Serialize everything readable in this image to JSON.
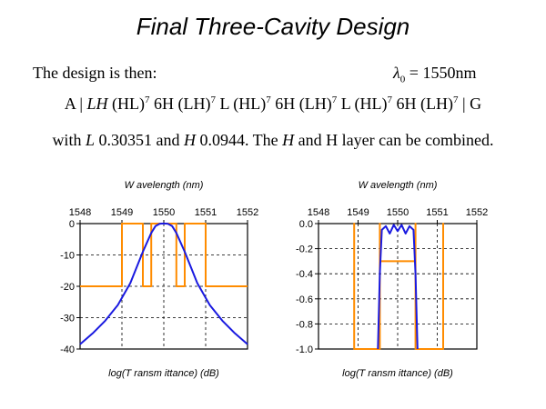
{
  "slide": {
    "title": "Final Three-Cavity Design",
    "intro": "The design is then:",
    "lambda_symbol": "λ",
    "lambda_subscript": "0",
    "lambda_value": " = 1550nm",
    "formula": [
      {
        "t": "A | "
      },
      {
        "t": "LH",
        "i": true
      },
      {
        "t": " (HL)"
      },
      {
        "t": "7",
        "sup": true
      },
      {
        "t": " 6H (LH)"
      },
      {
        "t": "7",
        "sup": true
      },
      {
        "t": " L (HL)"
      },
      {
        "t": "7",
        "sup": true
      },
      {
        "t": " 6H (LH)"
      },
      {
        "t": "7",
        "sup": true
      },
      {
        "t": " L (HL)"
      },
      {
        "t": "7",
        "sup": true
      },
      {
        "t": " 6H  (LH)"
      },
      {
        "t": "7",
        "sup": true
      },
      {
        "t": " | G"
      }
    ],
    "values_text": [
      {
        "t": "with "
      },
      {
        "t": "L",
        "i": true
      },
      {
        "t": " 0.30351 and "
      },
      {
        "t": "H",
        "i": true
      },
      {
        "t": " 0.0944. The "
      },
      {
        "t": "H",
        "i": true
      },
      {
        "t": " and H layer can be combined."
      }
    ]
  },
  "chart_data": [
    {
      "type": "line",
      "title": "W avelength (nm)",
      "xlabel": "log(T ransm ittance) (dB)",
      "ylabel": "",
      "xlim": [
        1548,
        1552
      ],
      "ylim": [
        -40,
        0
      ],
      "x_ticks": [
        1548,
        1549,
        1550,
        1551,
        1552
      ],
      "x_tick_labels": [
        "1548",
        "1549",
        "1550",
        "1551",
        "1552"
      ],
      "y_ticks": [
        0,
        -10,
        -20,
        -30,
        -40
      ],
      "y_tick_labels": [
        "0",
        "-10",
        "-20",
        "-30",
        "-40"
      ],
      "grid": true,
      "series": [
        {
          "color": "#1a1ae0",
          "x": [
            1548,
            1548.3,
            1548.6,
            1548.9,
            1549.2,
            1549.5,
            1549.7,
            1549.8,
            1549.9,
            1549.95,
            1550.0,
            1550.05,
            1550.1,
            1550.2,
            1550.3,
            1550.5,
            1550.8,
            1551.1,
            1551.4,
            1551.7,
            1552
          ],
          "y": [
            -38.5,
            -35,
            -31,
            -26,
            -19,
            -9,
            -3,
            -0.8,
            -0.1,
            0,
            0,
            0,
            -0.1,
            -0.8,
            -3,
            -9,
            -19,
            -26,
            -31,
            -35,
            -38.5
          ]
        },
        {
          "color": "#ff8c00",
          "x": [
            1548,
            1549,
            1549,
            1549.5,
            1549.5,
            1549.7,
            1549.7,
            1550.3,
            1550.3,
            1550.5,
            1550.5,
            1551,
            1551,
            1552
          ],
          "y": [
            -20,
            -20,
            0,
            0,
            -20,
            -20,
            0,
            0,
            -20,
            -20,
            0,
            0,
            -20,
            -20
          ]
        }
      ]
    },
    {
      "type": "line",
      "title": "W avelength (nm)",
      "xlabel": "log(T ransm ittance) (dB)",
      "ylabel": "",
      "xlim": [
        1548,
        1552
      ],
      "ylim": [
        -1.0,
        0.0
      ],
      "x_ticks": [
        1548,
        1549,
        1550,
        1551,
        1552
      ],
      "x_tick_labels": [
        "1548",
        "1549",
        "1550",
        "1551",
        "1552"
      ],
      "y_ticks": [
        0,
        -0.2,
        -0.4,
        -0.6,
        -0.8,
        -1.0
      ],
      "y_tick_labels": [
        "0.0",
        "-0.2",
        "-0.4",
        "-0.6",
        "-0.8",
        "-1.0"
      ],
      "grid": true,
      "series": [
        {
          "color": "#1a1ae0",
          "x": [
            1549.5,
            1549.55,
            1549.6,
            1549.7,
            1549.8,
            1549.9,
            1550.0,
            1550.1,
            1550.2,
            1550.3,
            1550.4,
            1550.45,
            1550.5
          ],
          "y": [
            -1.0,
            -0.4,
            -0.05,
            -0.02,
            -0.08,
            -0.01,
            -0.06,
            -0.01,
            -0.08,
            -0.02,
            -0.05,
            -0.4,
            -1.0
          ]
        },
        {
          "color": "#ff8c00",
          "x": [
            1548.9,
            1548.9,
            1548.9,
            1549.55,
            1549.55,
            1549.55,
            1549.55,
            1550.45,
            1550.45,
            1550.45,
            1550.45,
            1551.15,
            1551.15,
            1551.15
          ],
          "y": [
            -1.0,
            0,
            -1.0,
            -1.0,
            0,
            -1.0,
            -0.3,
            -0.3,
            -1.0,
            0,
            -1.0,
            -1.0,
            0,
            -1.0
          ]
        }
      ]
    }
  ],
  "colors": {
    "curve_blue": "#1a1ae0",
    "profile_orange": "#ff8c00",
    "grid": "#000000"
  }
}
